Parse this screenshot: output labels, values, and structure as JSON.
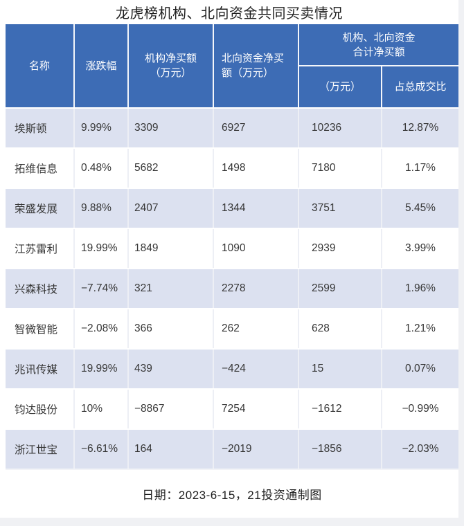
{
  "title": "龙虎榜机构、北向资金共同买卖情况",
  "table": {
    "headers": {
      "name": "名称",
      "change": "涨跌幅",
      "inst_net_buy": "机构净买额\n（万元）",
      "north_net_buy": "北向资金净买\n额（万元）",
      "combined_group": "机构、北向资金\n合计净买额",
      "combined_amount": "（万元）",
      "combined_ratio": "占总成交比"
    },
    "rows": [
      {
        "name": "埃斯顿",
        "change": "9.99%",
        "inst": "3309",
        "north": "6927",
        "total": "10236",
        "ratio": "12.87%"
      },
      {
        "name": "拓维信息",
        "change": "0.48%",
        "inst": "5682",
        "north": "1498",
        "total": "7180",
        "ratio": "1.17%"
      },
      {
        "name": "荣盛发展",
        "change": "9.88%",
        "inst": "2407",
        "north": "1344",
        "total": "3751",
        "ratio": "5.45%"
      },
      {
        "name": "江苏雷利",
        "change": "19.99%",
        "inst": "1849",
        "north": "1090",
        "total": "2939",
        "ratio": "3.99%"
      },
      {
        "name": "兴森科技",
        "change": "−7.74%",
        "inst": "321",
        "north": "2278",
        "total": "2599",
        "ratio": "1.96%"
      },
      {
        "name": "智微智能",
        "change": "−2.08%",
        "inst": "366",
        "north": "262",
        "total": "628",
        "ratio": "1.21%"
      },
      {
        "name": "兆讯传媒",
        "change": "19.99%",
        "inst": "439",
        "north": "−424",
        "total": "15",
        "ratio": "0.07%"
      },
      {
        "name": "钧达股份",
        "change": "10%",
        "inst": "−8867",
        "north": "7254",
        "total": "−1612",
        "ratio": "−0.99%"
      },
      {
        "name": "浙江世宝",
        "change": "−6.61%",
        "inst": "164",
        "north": "−2019",
        "total": "−1856",
        "ratio": "−2.03%"
      }
    ]
  },
  "footer": {
    "note": "日期：2023-6-15，21投资通制图"
  },
  "colors": {
    "header_bg": "#3d6cb5",
    "header_text": "#ffffff",
    "row_alt_bg": "#dce1f0",
    "row_bg": "#ffffff",
    "body_text": "#363636",
    "page_margin": "#f0f1f4"
  },
  "chart_data": {
    "type": "table",
    "title": "龙虎榜机构、北向资金共同买卖情况",
    "columns": [
      "名称",
      "涨跌幅",
      "机构净买额（万元）",
      "北向资金净买额（万元）",
      "机构、北向资金合计净买额（万元）",
      "机构、北向资金合计净买额占总成交比"
    ],
    "rows": [
      [
        "埃斯顿",
        "9.99%",
        3309,
        6927,
        10236,
        "12.87%"
      ],
      [
        "拓维信息",
        "0.48%",
        5682,
        1498,
        7180,
        "1.17%"
      ],
      [
        "荣盛发展",
        "9.88%",
        2407,
        1344,
        3751,
        "5.45%"
      ],
      [
        "江苏雷利",
        "19.99%",
        1849,
        1090,
        2939,
        "3.99%"
      ],
      [
        "兴森科技",
        "-7.74%",
        321,
        2278,
        2599,
        "1.96%"
      ],
      [
        "智微智能",
        "-2.08%",
        366,
        262,
        628,
        "1.21%"
      ],
      [
        "兆讯传媒",
        "19.99%",
        439,
        -424,
        15,
        "0.07%"
      ],
      [
        "钧达股份",
        "10%",
        -8867,
        7254,
        -1612,
        "-0.99%"
      ],
      [
        "浙江世宝",
        "-6.61%",
        164,
        -2019,
        -1856,
        "-2.03%"
      ]
    ],
    "note": "日期：2023-6-15，21投资通制图",
    "layout": {
      "header_rows": 2,
      "zebra_striping": true,
      "first_data_row_shaded": true
    }
  }
}
